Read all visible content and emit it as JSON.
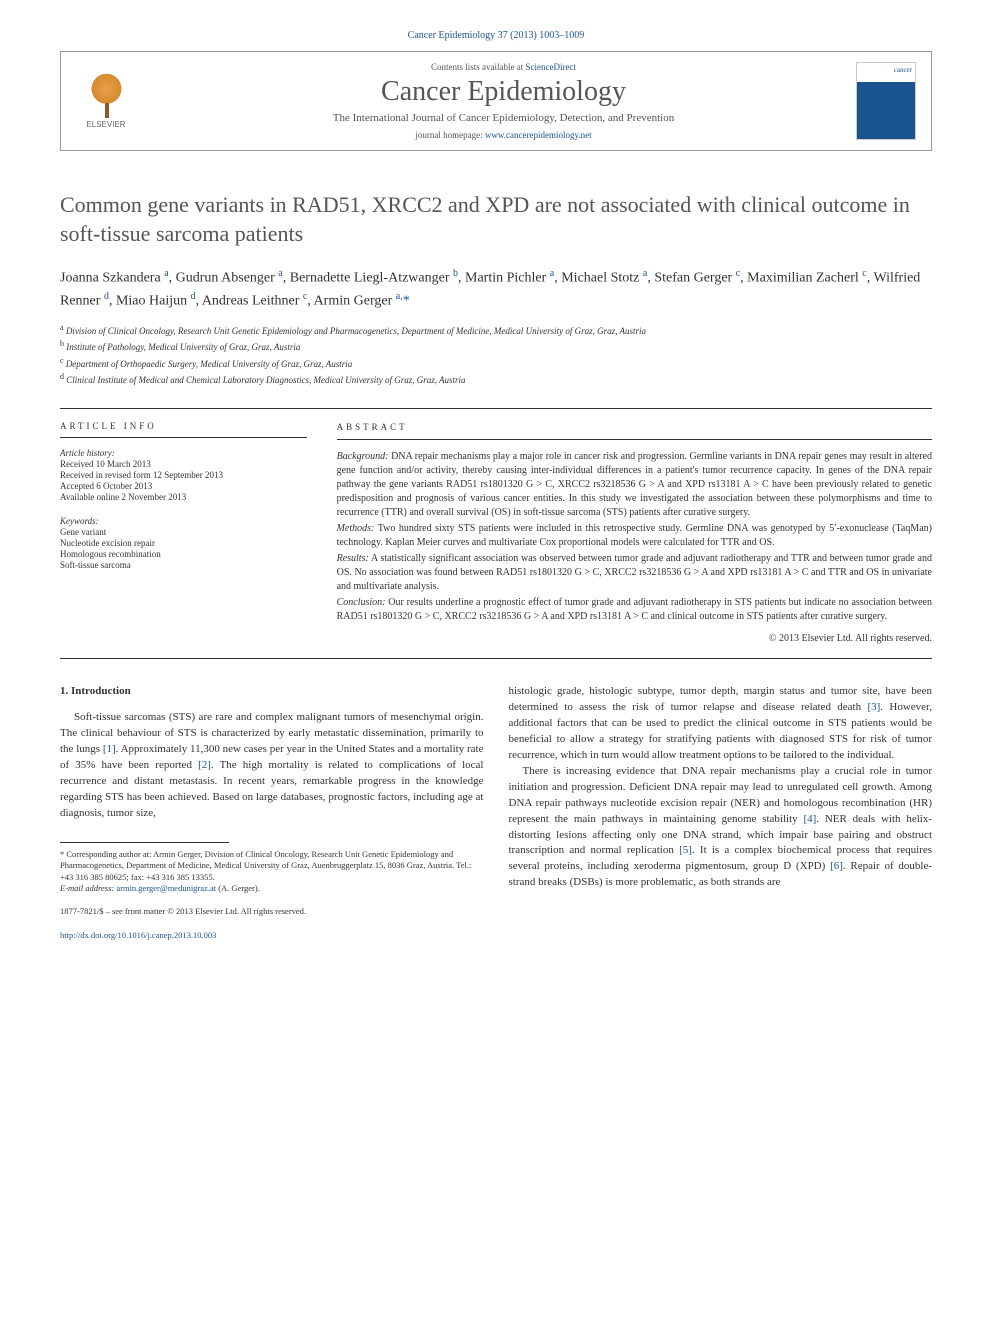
{
  "header": {
    "citation": "Cancer Epidemiology 37 (2013) 1003–1009",
    "contents_prefix": "Contents lists available at ",
    "contents_link": "ScienceDirect",
    "journal_name": "Cancer Epidemiology",
    "journal_subtitle": "The International Journal of Cancer Epidemiology, Detection, and Prevention",
    "homepage_prefix": "journal homepage: ",
    "homepage_link": "www.cancerepidemiology.net",
    "elsevier": "ELSEVIER"
  },
  "title": "Common gene variants in RAD51, XRCC2 and XPD are not associated with clinical outcome in soft-tissue sarcoma patients",
  "authors_html": "Joanna Szkandera <sup>a</sup>, Gudrun Absenger <sup>a</sup>, Bernadette Liegl-Atzwanger <sup>b</sup>, Martin Pichler <sup>a</sup>, Michael Stotz <sup>a</sup>, Stefan Gerger <sup>c</sup>, Maximilian Zacherl <sup>c</sup>, Wilfried Renner <sup>d</sup>, Miao Haijun <sup>d</sup>, Andreas Leithner <sup>c</sup>, Armin Gerger <sup>a,</sup><span class=\"corr\">*</span>",
  "affiliations": [
    "a Division of Clinical Oncology, Research Unit Genetic Epidemiology and Pharmacogenetics, Department of Medicine, Medical University of Graz, Graz, Austria",
    "b Institute of Pathology, Medical University of Graz, Graz, Austria",
    "c Department of Orthopaedic Surgery, Medical University of Graz, Graz, Austria",
    "d Clinical Institute of Medical and Chemical Laboratory Diagnostics, Medical University of Graz, Graz, Austria"
  ],
  "article_info": {
    "heading": "ARTICLE INFO",
    "history_label": "Article history:",
    "history": [
      "Received 10 March 2013",
      "Received in revised form 12 September 2013",
      "Accepted 6 October 2013",
      "Available online 2 November 2013"
    ],
    "keywords_label": "Keywords:",
    "keywords": [
      "Gene variant",
      "Nucleotide excision repair",
      "Homologous recombination",
      "Soft-tissue sarcoma"
    ]
  },
  "abstract": {
    "heading": "ABSTRACT",
    "background_label": "Background:",
    "background": " DNA repair mechanisms play a major role in cancer risk and progression. Germline variants in DNA repair genes may result in altered gene function and/or activity, thereby causing inter-individual differences in a patient's tumor recurrence capacity. In genes of the DNA repair pathway the gene variants RAD51 rs1801320 G > C, XRCC2 rs3218536 G > A and XPD rs13181 A > C have been previously related to genetic predisposition and prognosis of various cancer entities. In this study we investigated the association between these polymorphisms and time to recurrence (TTR) and overall survival (OS) in soft-tissue sarcoma (STS) patients after curative surgery.",
    "methods_label": "Methods:",
    "methods": " Two hundred sixty STS patients were included in this retrospective study. Germline DNA was genotyped by 5′-exonuclease (TaqMan) technology. Kaplan Meier curves and multivariate Cox proportional models were calculated for TTR and OS.",
    "results_label": "Results:",
    "results": " A statistically significant association was observed between tumor grade and adjuvant radiotherapy and TTR and between tumor grade and OS. No association was found between RAD51 rs1801320 G > C, XRCC2 rs3218536 G > A and XPD rs13181 A > C and TTR and OS in univariate and multivariate analysis.",
    "conclusion_label": "Conclusion:",
    "conclusion": " Our results underline a prognostic effect of tumor grade and adjuvant radiotherapy in STS patients but indicate no association between RAD51 rs1801320 G > C, XRCC2 rs3218536 G > A and XPD rs13181 A > C and clinical outcome in STS patients after curative surgery.",
    "copyright": "© 2013 Elsevier Ltd. All rights reserved."
  },
  "body": {
    "sec1_heading": "1. Introduction",
    "col1_p1_a": "Soft-tissue sarcomas (STS) are rare and complex malignant tumors of mesenchymal origin. The clinical behaviour of STS is characterized by early metastatic dissemination, primarily to the lungs ",
    "ref1": "[1]",
    "col1_p1_b": ". Approximately 11,300 new cases per year in the United States and a mortality rate of 35% have been reported ",
    "ref2": "[2]",
    "col1_p1_c": ". The high mortality is related to complications of local recurrence and distant metastasis. In recent years, remarkable progress in the knowledge regarding STS has been achieved. Based on large databases, prognostic factors, including age at diagnosis, tumor size,",
    "col2_p1_a": "histologic grade, histologic subtype, tumor depth, margin status and tumor site, have been determined to assess the risk of tumor relapse and disease related death ",
    "ref3": "[3]",
    "col2_p1_b": ". However, additional factors that can be used to predict the clinical outcome in STS patients would be beneficial to allow a strategy for stratifying patients with diagnosed STS for risk of tumor recurrence, which in turn would allow treatment options to be tailored to the individual.",
    "col2_p2_a": "There is increasing evidence that DNA repair mechanisms play a crucial role in tumor initiation and progression. Deficient DNA repair may lead to unregulated cell growth. Among DNA repair pathways nucleotide excision repair (NER) and homologous recombination (HR) represent the main pathways in maintaining genome stability ",
    "ref4": "[4]",
    "col2_p2_b": ". NER deals with helix-distorting lesions affecting only one DNA strand, which impair base pairing and obstruct transcription and normal replication ",
    "ref5": "[5]",
    "col2_p2_c": ". It is a complex biochemical process that requires several proteins, including xeroderma pigmentosum, group D (XPD) ",
    "ref6": "[6]",
    "col2_p2_d": ". Repair of double-strand breaks (DSBs) is more problematic, as both strands are"
  },
  "footnotes": {
    "corr": "* Corresponding author at: Armin Gerger, Division of Clinical Oncology, Research Unit Genetic Epidemiology and Pharmacogenetics, Department of Medicine, Medical University of Graz, Auenbruggerplatz 15, 8036 Graz, Austria. Tel.: +43 316 385 80625; fax: +43 316 385 13355.",
    "email_label": "E-mail address: ",
    "email": "armin.gerger@medunigraz.at",
    "email_suffix": " (A. Gerger).",
    "issn": "1877-7821/$ – see front matter © 2013 Elsevier Ltd. All rights reserved.",
    "doi": "http://dx.doi.org/10.1016/j.canep.2013.10.003"
  },
  "colors": {
    "link": "#1a5490",
    "text": "#333333",
    "heading_gray": "#555555"
  }
}
